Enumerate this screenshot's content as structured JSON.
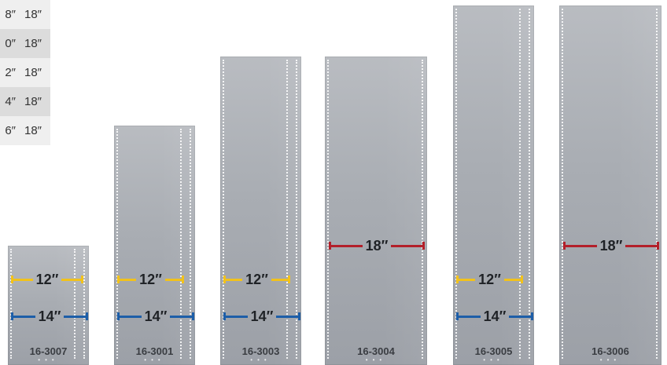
{
  "spec_table": [
    {
      "a": "8″",
      "b": "18″"
    },
    {
      "a": "0″",
      "b": "18″"
    },
    {
      "a": "2″",
      "b": "18″"
    },
    {
      "a": "4″",
      "b": "18″"
    },
    {
      "a": "6″",
      "b": "18″"
    }
  ],
  "panels": [
    {
      "sku": "16-3007",
      "yellow": "12″",
      "blue": "14″"
    },
    {
      "sku": "16-3001",
      "yellow": "12″",
      "blue": "14″"
    },
    {
      "sku": "16-3003",
      "yellow": "12″",
      "blue": "14″"
    },
    {
      "sku": "16-3004",
      "red": "18″"
    },
    {
      "sku": "16-3005",
      "yellow": "12″",
      "blue": "14″"
    },
    {
      "sku": "16-3006",
      "red": "18″"
    }
  ],
  "colors": {
    "yellow": "#f2c21a",
    "blue": "#1d5ea8",
    "red": "#b3202a",
    "panel": "#a9adb3"
  }
}
